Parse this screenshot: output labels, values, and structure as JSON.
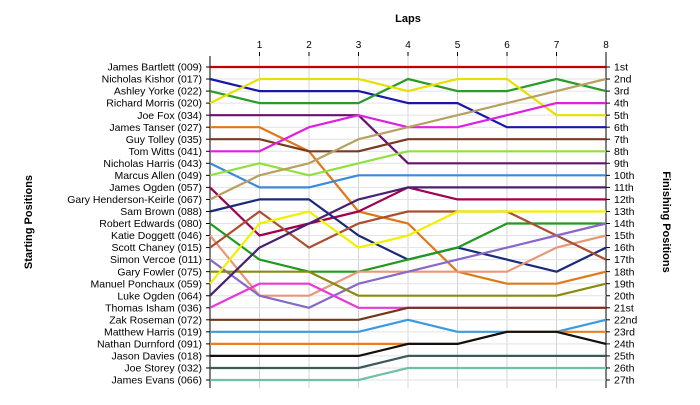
{
  "chart_data": {
    "type": "line",
    "title": "",
    "xlabel": "Laps",
    "ylabel_left": "Starting Positions",
    "ylabel_right": "Finishing Positions",
    "x": [
      0,
      1,
      2,
      3,
      4,
      5,
      6,
      7,
      8
    ],
    "x_tick_labels": [
      "1",
      "2",
      "3",
      "4",
      "5",
      "6",
      "7",
      "8"
    ],
    "xlim": [
      0,
      8
    ],
    "ylim": [
      1,
      27
    ],
    "y_inverted": true,
    "grid": true,
    "legend": "none",
    "start_labels": [
      "James Bartlett (009)",
      "Nicholas Kishor (017)",
      "Ashley Yorke (022)",
      "Richard Morris (020)",
      "Joe Fox (034)",
      "James Tanser (027)",
      "Guy Tolley (035)",
      "Tom Witts (041)",
      "Nicholas Harris (043)",
      "Marcus Allen (049)",
      "James Ogden (057)",
      "Gary Henderson-Keirle (067)",
      "Sam Brown (088)",
      "Robert Edwards (080)",
      "Katie Doggett (046)",
      "Scott Chaney (015)",
      "Simon Vercoe (011)",
      "Gary Fowler (075)",
      "Manuel Ponchaux (059)",
      "Luke Ogden (064)",
      "Thomas Isham (036)",
      "Zak Roseman (072)",
      "Matthew Harris (019)",
      "Nathan Durnford (091)",
      "Jason Davies (018)",
      "Joe Storey (032)",
      "James Evans (066)"
    ],
    "finish_labels": [
      "1st",
      "2nd",
      "3rd",
      "4th",
      "5th",
      "6th",
      "7th",
      "8th",
      "9th",
      "10th",
      "11th",
      "12th",
      "13th",
      "14th",
      "15th",
      "16th",
      "17th",
      "18th",
      "19th",
      "20th",
      "21st",
      "22nd",
      "23rd",
      "24th",
      "25th",
      "26th",
      "27th"
    ],
    "series": [
      {
        "color": "#c00000",
        "values": [
          1,
          1,
          1,
          1,
          1,
          1,
          1,
          1,
          1
        ]
      },
      {
        "color": "#1818a8",
        "values": [
          2,
          3,
          3,
          3,
          4,
          4,
          6,
          6,
          6
        ]
      },
      {
        "color": "#2a9a2a",
        "values": [
          3,
          4,
          4,
          4,
          2,
          3,
          3,
          2,
          3
        ]
      },
      {
        "color": "#e8e000",
        "values": [
          4,
          2,
          2,
          2,
          3,
          2,
          2,
          5,
          5
        ]
      },
      {
        "color": "#6a1070",
        "values": [
          5,
          5,
          5,
          5,
          9,
          9,
          9,
          9,
          9
        ]
      },
      {
        "color": "#e07818",
        "values": [
          6,
          6,
          8,
          13,
          14,
          18,
          19,
          19,
          18
        ]
      },
      {
        "color": "#7a3a20",
        "values": [
          7,
          7,
          8,
          8,
          7,
          7,
          7,
          7,
          7
        ]
      },
      {
        "color": "#e020e0",
        "values": [
          8,
          8,
          6,
          5,
          6,
          6,
          5,
          4,
          4
        ]
      },
      {
        "color": "#3a8ad8",
        "values": [
          9,
          11,
          11,
          10,
          10,
          10,
          10,
          10,
          10
        ]
      },
      {
        "color": "#90e040",
        "values": [
          10,
          9,
          10,
          9,
          8,
          8,
          8,
          8,
          8
        ]
      },
      {
        "color": "#a00050",
        "values": [
          11,
          15,
          14,
          13,
          11,
          12,
          12,
          12,
          12
        ]
      },
      {
        "color": "#b8a060",
        "values": [
          12,
          10,
          9,
          7,
          6,
          5,
          4,
          3,
          2
        ]
      },
      {
        "color": "#1a2a78",
        "values": [
          13,
          12,
          12,
          15,
          17,
          16,
          17,
          18,
          16
        ]
      },
      {
        "color": "#1f9a1f",
        "values": [
          14,
          17,
          18,
          18,
          17,
          16,
          14,
          14,
          14
        ]
      },
      {
        "color": "#e89878",
        "values": [
          15,
          20,
          20,
          18,
          18,
          18,
          18,
          16,
          15
        ]
      },
      {
        "color": "#a85030",
        "values": [
          16,
          13,
          16,
          14,
          13,
          13,
          13,
          15,
          17
        ]
      },
      {
        "color": "#8868c8",
        "values": [
          17,
          20,
          21,
          19,
          18,
          17,
          16,
          15,
          14
        ]
      },
      {
        "color": "#8a8a10",
        "values": [
          18,
          18,
          18,
          20,
          20,
          20,
          20,
          20,
          19
        ]
      },
      {
        "color": "#f0f000",
        "values": [
          19,
          14,
          13,
          16,
          15,
          13,
          13,
          13,
          13
        ]
      },
      {
        "color": "#4a2070",
        "values": [
          20,
          16,
          14,
          12,
          11,
          11,
          11,
          11,
          11
        ]
      },
      {
        "color": "#e838d8",
        "values": [
          21,
          19,
          19,
          21,
          21,
          21,
          21,
          21,
          21
        ]
      },
      {
        "color": "#703818",
        "values": [
          22,
          22,
          22,
          22,
          21,
          21,
          21,
          21,
          21
        ]
      },
      {
        "color": "#3a9ae0",
        "values": [
          23,
          23,
          23,
          23,
          22,
          23,
          23,
          23,
          22
        ]
      },
      {
        "color": "#e88020",
        "values": [
          24,
          24,
          24,
          24,
          24,
          24,
          23,
          23,
          23
        ]
      },
      {
        "color": "#101010",
        "values": [
          25,
          25,
          25,
          25,
          24,
          24,
          23,
          23,
          24
        ]
      },
      {
        "color": "#3a5a5a",
        "values": [
          26,
          26,
          26,
          26,
          25,
          25,
          25,
          25,
          25
        ]
      },
      {
        "color": "#70c0a8",
        "values": [
          27,
          27,
          27,
          27,
          26,
          26,
          26,
          26,
          26
        ]
      }
    ]
  }
}
